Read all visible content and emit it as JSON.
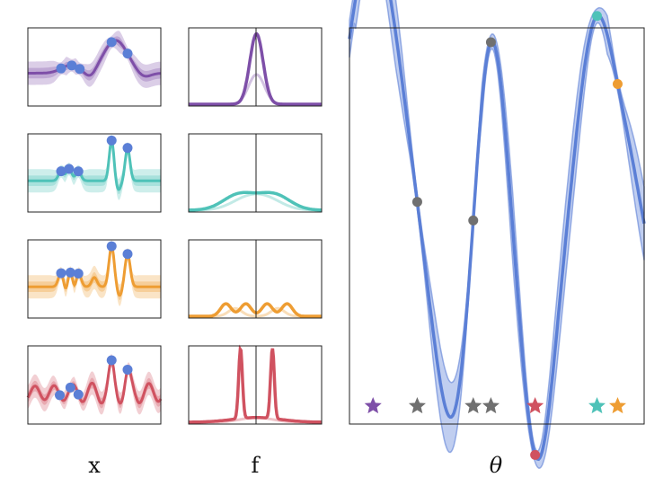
{
  "labels": {
    "x": "x",
    "f": "f",
    "theta": "θ"
  },
  "colors": {
    "purple": "#7e4fa8",
    "teal": "#4fc2b8",
    "orange": "#ee9d33",
    "red": "#d05260",
    "blue": "#5b7fd6",
    "blue_fill": "#8da6e4",
    "gray": "#707070"
  },
  "rows": [
    {
      "color": "purple",
      "dot_x": [
        0.25,
        0.33,
        0.39,
        0.63,
        0.75
      ],
      "theta_marker_x": 0.08
    },
    {
      "color": "teal",
      "dot_x": [
        0.25,
        0.31,
        0.38,
        0.63,
        0.75
      ],
      "theta_marker_x": 0.84
    },
    {
      "color": "orange",
      "dot_x": [
        0.25,
        0.32,
        0.38,
        0.63,
        0.75
      ],
      "theta_marker_x": 0.91
    },
    {
      "color": "red",
      "dot_x": [
        0.24,
        0.32,
        0.38,
        0.63,
        0.75
      ],
      "theta_marker_x": 0.63
    }
  ],
  "theta_panel": {
    "gray_markers_x": [
      0.23,
      0.42,
      0.48
    ],
    "colored_dots": [
      {
        "color": "purple",
        "x": 0.08
      },
      {
        "color": "red",
        "x": 0.63
      },
      {
        "color": "teal",
        "x": 0.84
      },
      {
        "color": "orange",
        "x": 0.91
      }
    ],
    "gray_dots_x": [
      0.23,
      0.42,
      0.48
    ]
  }
}
